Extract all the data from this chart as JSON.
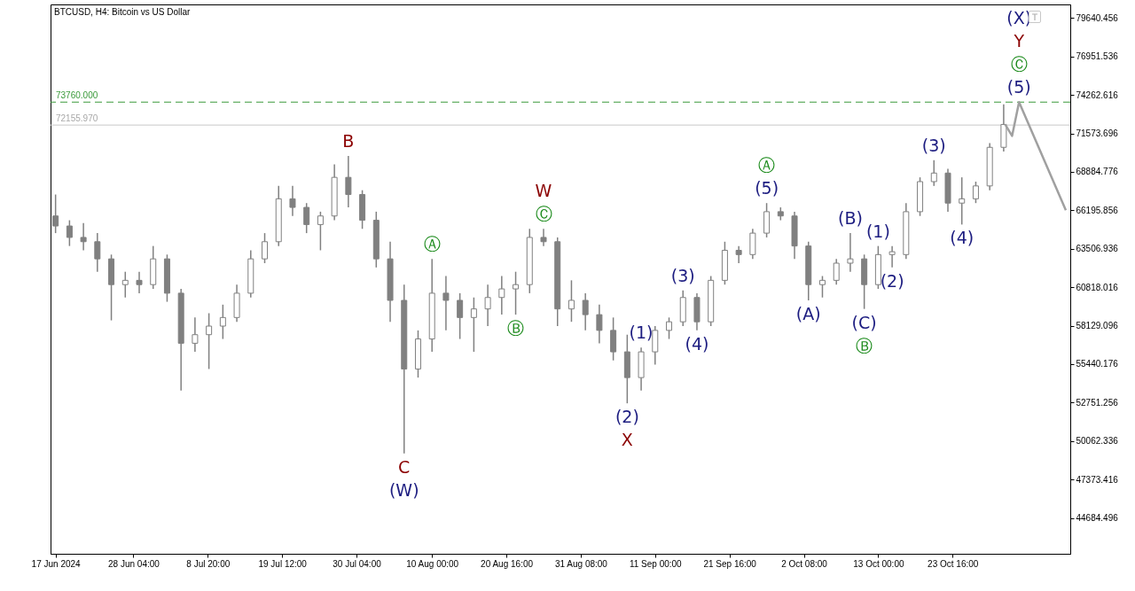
{
  "chart_data": {
    "type": "candlestick",
    "title": "BTCUSD, H4:  Bitcoin vs US Dollar",
    "color": "#808080",
    "x": [
      "2024-06-17",
      "2024-06-19",
      "2024-06-21",
      "2024-06-23",
      "2024-06-25",
      "2024-06-27",
      "2024-06-29",
      "2024-07-01",
      "2024-07-03",
      "2024-07-05",
      "2024-07-07",
      "2024-07-09",
      "2024-07-11",
      "2024-07-13",
      "2024-07-15",
      "2024-07-17",
      "2024-07-19",
      "2024-07-21",
      "2024-07-23",
      "2024-07-25",
      "2024-07-27",
      "2024-07-29",
      "2024-07-31",
      "2024-08-02",
      "2024-08-04",
      "2024-08-06",
      "2024-08-08",
      "2024-08-10",
      "2024-08-12",
      "2024-08-14",
      "2024-08-16",
      "2024-08-18",
      "2024-08-20",
      "2024-08-22",
      "2024-08-24",
      "2024-08-26",
      "2024-08-28",
      "2024-08-30",
      "2024-09-01",
      "2024-09-03",
      "2024-09-05",
      "2024-09-07",
      "2024-09-09",
      "2024-09-11",
      "2024-09-13",
      "2024-09-15",
      "2024-09-17",
      "2024-09-19",
      "2024-09-21",
      "2024-09-23",
      "2024-09-25",
      "2024-09-27",
      "2024-09-29",
      "2024-10-01",
      "2024-10-03",
      "2024-10-05",
      "2024-10-07",
      "2024-10-09",
      "2024-10-11",
      "2024-10-13",
      "2024-10-15",
      "2024-10-17",
      "2024-10-19",
      "2024-10-21",
      "2024-10-23",
      "2024-10-25",
      "2024-10-27",
      "2024-10-29",
      "2024-10-31"
    ],
    "ohlc": [
      [
        65800,
        67300,
        64600,
        65100
      ],
      [
        65100,
        65500,
        63700,
        64300
      ],
      [
        64300,
        65300,
        63400,
        64000
      ],
      [
        64000,
        64600,
        61900,
        62800
      ],
      [
        62800,
        63100,
        58500,
        61000
      ],
      [
        61000,
        61900,
        60100,
        61300
      ],
      [
        61300,
        61900,
        60400,
        61000
      ],
      [
        61000,
        63700,
        60700,
        62800
      ],
      [
        62800,
        63100,
        59800,
        60400
      ],
      [
        60400,
        60700,
        53600,
        56900
      ],
      [
        56900,
        58700,
        56300,
        57500
      ],
      [
        57500,
        59000,
        55100,
        58100
      ],
      [
        58100,
        59600,
        57200,
        58700
      ],
      [
        58700,
        61000,
        58400,
        60400
      ],
      [
        60400,
        63400,
        60100,
        62800
      ],
      [
        62800,
        64600,
        62500,
        64000
      ],
      [
        64000,
        67900,
        63700,
        67000
      ],
      [
        67000,
        67900,
        65800,
        66400
      ],
      [
        66400,
        66700,
        64600,
        65200
      ],
      [
        65200,
        66100,
        63400,
        65800
      ],
      [
        65800,
        69400,
        65500,
        68500
      ],
      [
        68500,
        70000,
        66400,
        67300
      ],
      [
        67300,
        67600,
        64900,
        65500
      ],
      [
        65500,
        66100,
        62200,
        62800
      ],
      [
        62800,
        64000,
        58400,
        59900
      ],
      [
        59900,
        61000,
        49200,
        55100
      ],
      [
        55100,
        57800,
        54500,
        57200
      ],
      [
        57200,
        62800,
        56300,
        60400
      ],
      [
        60400,
        61600,
        57800,
        59900
      ],
      [
        59900,
        60400,
        57200,
        58700
      ],
      [
        58700,
        60100,
        56300,
        59300
      ],
      [
        59300,
        61000,
        58100,
        60100
      ],
      [
        60100,
        61600,
        58900,
        60700
      ],
      [
        60700,
        61900,
        58900,
        61000
      ],
      [
        61000,
        64900,
        60400,
        64300
      ],
      [
        64300,
        64900,
        63700,
        64000
      ],
      [
        64000,
        64300,
        58100,
        59300
      ],
      [
        59300,
        61300,
        58400,
        59900
      ],
      [
        59900,
        60400,
        57800,
        58900
      ],
      [
        58900,
        59600,
        56900,
        57800
      ],
      [
        57800,
        58700,
        55700,
        56300
      ],
      [
        56300,
        57500,
        52700,
        54500
      ],
      [
        54500,
        56600,
        53600,
        56300
      ],
      [
        56300,
        58100,
        55400,
        57800
      ],
      [
        57800,
        58700,
        57200,
        58400
      ],
      [
        58400,
        60600,
        58100,
        60100
      ],
      [
        60100,
        60400,
        57800,
        58400
      ],
      [
        58400,
        61600,
        58100,
        61300
      ],
      [
        61300,
        64000,
        61000,
        63400
      ],
      [
        63400,
        63700,
        62500,
        63100
      ],
      [
        63100,
        64900,
        62800,
        64600
      ],
      [
        64600,
        66700,
        64300,
        66100
      ],
      [
        66100,
        66400,
        65500,
        65800
      ],
      [
        65800,
        66100,
        62800,
        63700
      ],
      [
        63700,
        64000,
        59900,
        61000
      ],
      [
        61000,
        61600,
        60100,
        61300
      ],
      [
        61300,
        62800,
        61000,
        62500
      ],
      [
        62500,
        64600,
        61900,
        62800
      ],
      [
        62800,
        63100,
        59300,
        61000
      ],
      [
        61000,
        63700,
        60700,
        63100
      ],
      [
        63100,
        63700,
        62200,
        63300
      ],
      [
        63100,
        66700,
        62800,
        66100
      ],
      [
        66100,
        68500,
        65800,
        68200
      ],
      [
        68200,
        69700,
        67900,
        68800
      ],
      [
        68800,
        69100,
        66100,
        66700
      ],
      [
        66700,
        68500,
        65200,
        67000
      ],
      [
        67000,
        68200,
        66700,
        67900
      ],
      [
        67900,
        70900,
        67600,
        70600
      ],
      [
        70600,
        73600,
        70300,
        72200
      ]
    ],
    "series": [
      {
        "type": "line",
        "color": "#a0a0a0",
        "line_style": "solid",
        "x": [
          "2024-10-31T05:00",
          "2024-11-01T05:00",
          "2024-11-02T05:00",
          "2024-11-08T22:00"
        ],
        "values": [
          72200,
          71400,
          73760,
          66200
        ]
      }
    ],
    "xlim": [
      "2024-06-16T22:00",
      "2024-11-08T22:00"
    ],
    "ylim": [
      42180,
      80590
    ],
    "xticks": [
      {
        "value": "2024-06-17T00:00",
        "label": "17 Jun 2024"
      },
      {
        "value": "2024-06-28T04:00",
        "label": "28 Jun 04:00"
      },
      {
        "value": "2024-07-08T20:00",
        "label": "8 Jul 20:00"
      },
      {
        "value": "2024-07-19T12:00",
        "label": "19 Jul 12:00"
      },
      {
        "value": "2024-07-30T04:00",
        "label": "30 Jul 04:00"
      },
      {
        "value": "2024-08-10T00:00",
        "label": "10 Aug 00:00"
      },
      {
        "value": "2024-08-20T16:00",
        "label": "20 Aug 16:00"
      },
      {
        "value": "2024-08-31T08:00",
        "label": "31 Aug 08:00"
      },
      {
        "value": "2024-09-11T00:00",
        "label": "11 Sep 00:00"
      },
      {
        "value": "2024-09-21T16:00",
        "label": "21 Sep 16:00"
      },
      {
        "value": "2024-10-02T08:00",
        "label": "2 Oct 08:00"
      },
      {
        "value": "2024-10-13T00:00",
        "label": "13 Oct 00:00"
      },
      {
        "value": "2024-10-23T16:00",
        "label": "23 Oct 16:00"
      }
    ],
    "yticks": [
      44684.496,
      47373.416,
      50062.336,
      52751.256,
      55440.176,
      58129.096,
      60818.016,
      63506.936,
      66195.856,
      68884.776,
      71573.696,
      74262.616,
      76951.536,
      79640.456
    ],
    "ref_lines": [
      {
        "axis": "y",
        "value": 73760,
        "label": "73760.000",
        "color": "#3a9a3a",
        "line_style": "dashed"
      },
      {
        "axis": "y",
        "value": 72155.97,
        "label": "72155.970",
        "color": "#c8c8c8",
        "line_style": "solid"
      }
    ],
    "annotations": [
      {
        "text": "B",
        "x": "2024-07-29",
        "y": 70000
      },
      {
        "text": "C",
        "x": "2024-08-06",
        "y": 49200
      },
      {
        "text": "(W)",
        "x": "2024-08-06",
        "y": 49200
      },
      {
        "text": "Ⓐ",
        "x": "2024-08-10",
        "y": 62800
      },
      {
        "text": "Ⓑ",
        "x": "2024-08-22",
        "y": 58900
      },
      {
        "text": "Ⓒ",
        "x": "2024-08-26",
        "y": 64900
      },
      {
        "text": "W",
        "x": "2024-08-26",
        "y": 64900
      },
      {
        "text": "(1)",
        "x": "2024-09-09",
        "y": 56600
      },
      {
        "text": "(2)",
        "x": "2024-09-07",
        "y": 52700
      },
      {
        "text": "X",
        "x": "2024-09-07",
        "y": 52700
      },
      {
        "text": "(3)",
        "x": "2024-09-15",
        "y": 60600
      },
      {
        "text": "(4)",
        "x": "2024-09-17",
        "y": 57800
      },
      {
        "text": "(5)",
        "x": "2024-09-27",
        "y": 66700
      },
      {
        "text": "Ⓐ",
        "x": "2024-09-27",
        "y": 66700
      },
      {
        "text": "(A)",
        "x": "2024-10-03",
        "y": 59900
      },
      {
        "text": "(B)",
        "x": "2024-10-09",
        "y": 64600
      },
      {
        "text": "(C)",
        "x": "2024-10-11",
        "y": 59300
      },
      {
        "text": "Ⓑ",
        "x": "2024-10-11",
        "y": 59300
      },
      {
        "text": "(1)",
        "x": "2024-10-13",
        "y": 63700
      },
      {
        "text": "(2)",
        "x": "2024-10-15",
        "y": 62200
      },
      {
        "text": "(3)",
        "x": "2024-10-21",
        "y": 69700
      },
      {
        "text": "(4)",
        "x": "2024-10-25",
        "y": 65200
      },
      {
        "text": "(5)",
        "x": "2024-11-02T05:00",
        "y": 73760
      },
      {
        "text": "Ⓒ",
        "x": "2024-11-02T05:00",
        "y": 73760
      },
      "Y",
      "(X)"
    ]
  }
}
